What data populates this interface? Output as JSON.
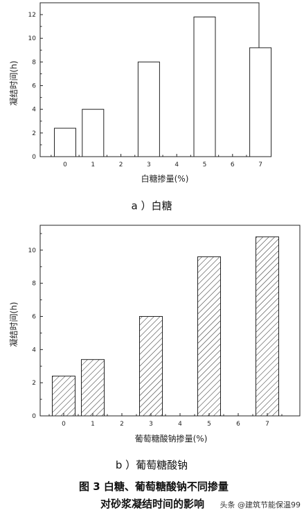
{
  "chart_data": [
    {
      "type": "bar",
      "id": "a",
      "categories": [
        "0",
        "1",
        "2",
        "3",
        "4",
        "5",
        "6",
        "7"
      ],
      "x_ticks": [
        "0",
        "1",
        "2",
        "3",
        "4",
        "5",
        "6",
        "7"
      ],
      "x_values": [
        0,
        1,
        3,
        5,
        7
      ],
      "values": [
        2.4,
        4.0,
        8.0,
        11.8,
        9.2
      ],
      "ylim": [
        0,
        13
      ],
      "y_ticks": [
        "0",
        "2",
        "4",
        "6",
        "8",
        "10",
        "12"
      ],
      "xlabel": "白糖掺量(%)",
      "ylabel": "凝结时间(h)",
      "fill": "none",
      "caption": "a ）白糖"
    },
    {
      "type": "bar",
      "id": "b",
      "categories": [
        "0",
        "1",
        "2",
        "3",
        "4",
        "5",
        "6",
        "7"
      ],
      "x_ticks": [
        "0",
        "1",
        "2",
        "3",
        "4",
        "5",
        "6",
        "7"
      ],
      "x_values": [
        0,
        1,
        3,
        5,
        7
      ],
      "values": [
        2.4,
        3.4,
        6.0,
        9.6,
        10.8
      ],
      "ylim": [
        0,
        11.5
      ],
      "y_ticks": [
        "0",
        "2",
        "4",
        "6",
        "8",
        "10"
      ],
      "xlabel": "葡萄糖酸钠掺量(%)",
      "ylabel": "凝结时间(h)",
      "fill": "hatch",
      "caption": "b ）葡萄糖酸钠"
    }
  ],
  "figure_caption_line1": "图 3   白糖、葡萄糖酸钠不同掺量",
  "figure_caption_line2": "对砂浆凝结时间的影响",
  "watermark": "头条 @建筑节能保温99",
  "colors": {
    "axis": "#222222",
    "bar_stroke": "#222222",
    "text": "#111111"
  }
}
